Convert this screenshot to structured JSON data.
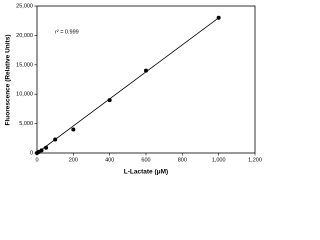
{
  "chart_data": {
    "type": "scatter",
    "x_label": "L-Lactate (μM)",
    "y_label": "Fluorescence (Relative Units)",
    "annotation": "r² = 0.999",
    "series": [
      {
        "x": [
          0,
          10,
          25,
          50,
          100,
          200,
          400,
          600,
          1000
        ],
        "values": [
          0,
          200,
          450,
          900,
          2300,
          4000,
          9000,
          14000,
          23000
        ],
        "color": "#000000"
      }
    ],
    "fit_line": {
      "x": [
        0,
        1000
      ],
      "values": [
        0,
        23000
      ],
      "color": "#000000"
    },
    "xlim": [
      0,
      1200
    ],
    "xticks": [
      0,
      200,
      400,
      600,
      800,
      {
        "value": 1000,
        "label": "1,000"
      },
      {
        "value": 1200,
        "label": "1,200"
      }
    ],
    "ylim": [
      0,
      25000
    ],
    "yticks": [
      0,
      {
        "value": 5000,
        "label": "5,000"
      },
      {
        "value": 10000,
        "label": "10,000"
      },
      {
        "value": 15000,
        "label": "15,000"
      },
      {
        "value": 20000,
        "label": "20,000"
      },
      {
        "value": 25000,
        "label": "25,000"
      }
    ],
    "grid": false
  }
}
